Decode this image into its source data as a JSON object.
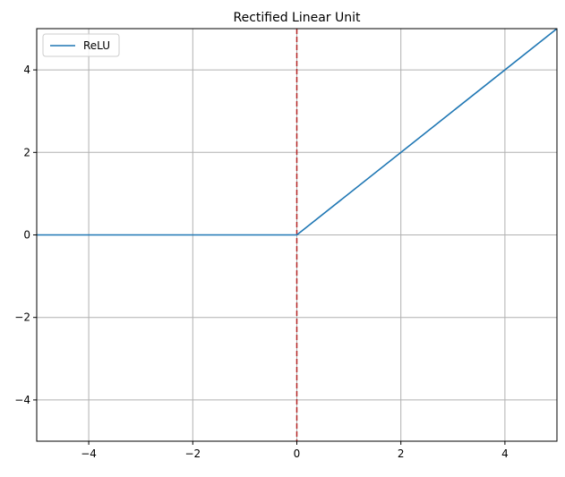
{
  "chart_data": {
    "type": "line",
    "title": "Rectified Linear Unit",
    "xlabel": "",
    "ylabel": "",
    "xlim": [
      -5,
      5
    ],
    "ylim": [
      -5,
      5
    ],
    "x_ticks": [
      -4,
      -2,
      0,
      2,
      4
    ],
    "y_ticks": [
      -4,
      -2,
      0,
      2,
      4
    ],
    "x_tick_labels": [
      "−4",
      "−2",
      "0",
      "2",
      "4"
    ],
    "y_tick_labels": [
      "−4",
      "−2",
      "0",
      "2",
      "4"
    ],
    "grid": true,
    "legend_placement": "top-left",
    "series": [
      {
        "name": "ReLU",
        "color": "#1f77b4",
        "x": [
          -5,
          0,
          5
        ],
        "y": [
          0,
          0,
          5
        ]
      }
    ],
    "vline": {
      "x": 0,
      "style": "dashed",
      "color": "#b22222"
    }
  }
}
